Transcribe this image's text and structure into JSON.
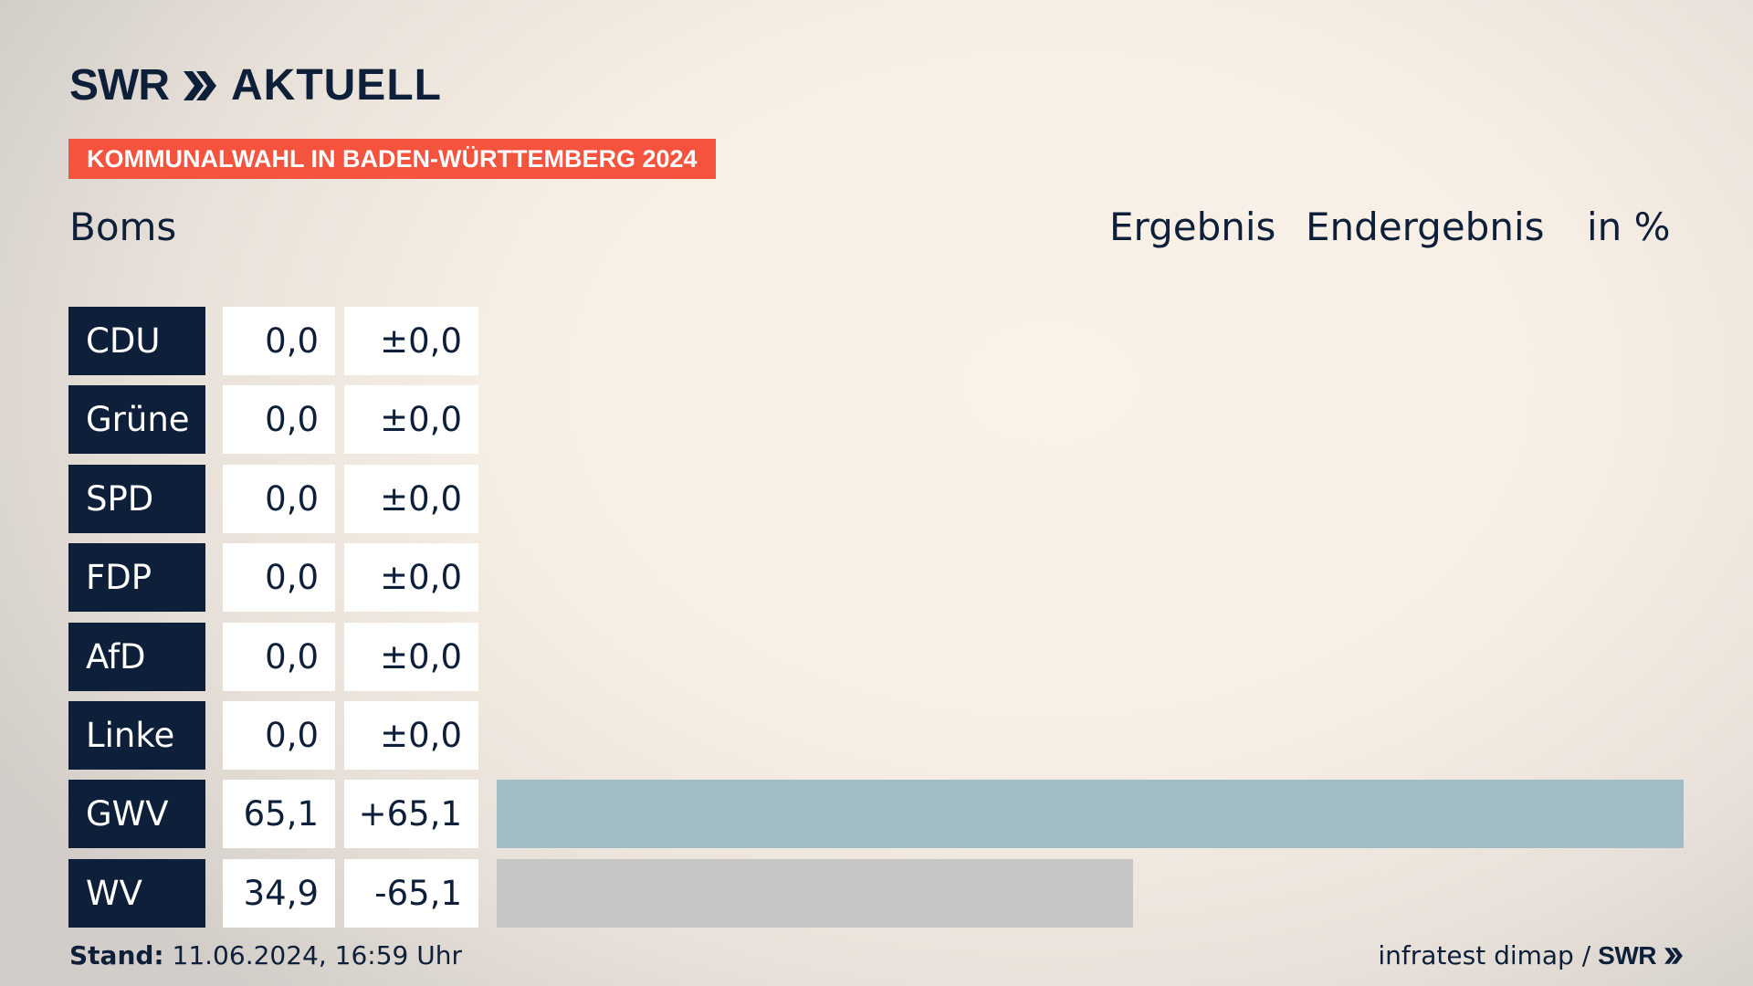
{
  "header": {
    "logo_left": "SWR",
    "logo_right": "AKTUELL",
    "banner": "KOMMUNALWAHL IN BADEN-WÜRTTEMBERG 2024",
    "place": "Boms",
    "col_ergebnis": "Ergebnis",
    "col_endergebnis": "Endergebnis",
    "col_unit": "in %"
  },
  "chart_data": {
    "type": "bar",
    "orientation": "horizontal",
    "categories": [
      "CDU",
      "Grüne",
      "SPD",
      "FDP",
      "AfD",
      "Linke",
      "GWV",
      "WV"
    ],
    "values": [
      0.0,
      0.0,
      0.0,
      0.0,
      0.0,
      0.0,
      65.1,
      34.9
    ],
    "value_labels": [
      "0,0",
      "0,0",
      "0,0",
      "0,0",
      "0,0",
      "0,0",
      "65,1",
      "34,9"
    ],
    "diff_labels": [
      "±0,0",
      "±0,0",
      "±0,0",
      "±0,0",
      "±0,0",
      "±0,0",
      "+65,1",
      "-65,1"
    ],
    "colors": [
      "#0e1f3a",
      "#5a9a40",
      "#e3000f",
      "#ffe000",
      "#009ee0",
      "#b1003e",
      "#a0bdc6",
      "#c7c6c5"
    ],
    "xlim": [
      0,
      65.1
    ]
  },
  "footer": {
    "stand_label": "Stand:",
    "stand_value": "11.06.2024, 16:59 Uhr",
    "source": "infratest dimap /",
    "source_logo": "SWR"
  }
}
